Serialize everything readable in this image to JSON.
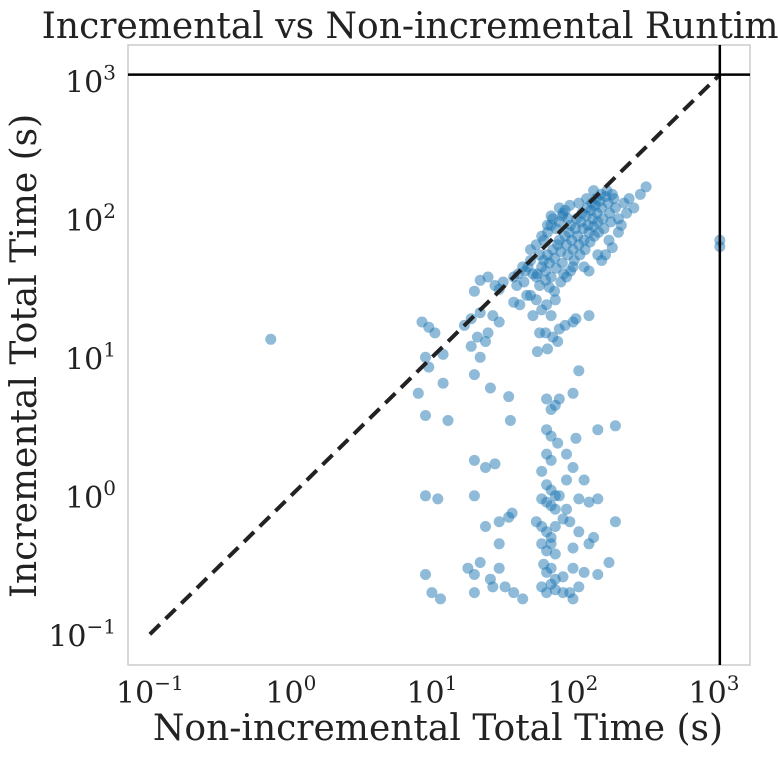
{
  "chart_data": {
    "type": "scatter",
    "title": "Incremental vs Non-incremental Runtimes",
    "xlabel": "Non-incremental Total Time (s)",
    "ylabel": "Incremental Total Time (s)",
    "xscale": "log",
    "yscale": "log",
    "xlim": [
      0.07,
      1800
    ],
    "ylim": [
      0.06,
      1800
    ],
    "grid": false,
    "x_ticks": [
      {
        "value": 0.1,
        "base": "10",
        "exp": "−1"
      },
      {
        "value": 1,
        "base": "10",
        "exp": "0"
      },
      {
        "value": 10,
        "base": "10",
        "exp": "1"
      },
      {
        "value": 100,
        "base": "10",
        "exp": "2"
      },
      {
        "value": 1000,
        "base": "10",
        "exp": "3"
      }
    ],
    "y_ticks": [
      {
        "value": 0.1,
        "base": "10",
        "exp": "−1"
      },
      {
        "value": 1,
        "base": "10",
        "exp": "0"
      },
      {
        "value": 10,
        "base": "10",
        "exp": "1"
      },
      {
        "value": 100,
        "base": "10",
        "exp": "2"
      },
      {
        "value": 1000,
        "base": "10",
        "exp": "3"
      }
    ],
    "reference_lines": {
      "diagonal": {
        "from": 0.1,
        "to": 1100,
        "style": "dashed",
        "color": "#222222"
      },
      "timeout_x": 1100,
      "timeout_y": 1100
    },
    "point_color": "#1f77b4",
    "series": [
      {
        "points": [
          [
            0.72,
            13.5
          ],
          [
            8.5,
            18
          ],
          [
            9.5,
            16.5
          ],
          [
            10.5,
            15
          ],
          [
            9,
            10
          ],
          [
            9.5,
            8.5
          ],
          [
            12,
            10.5
          ],
          [
            8,
            5.5
          ],
          [
            9,
            3.8
          ],
          [
            13,
            3.5
          ],
          [
            12,
            6.5
          ],
          [
            17,
            17
          ],
          [
            19,
            19
          ],
          [
            22,
            21
          ],
          [
            27,
            20
          ],
          [
            30,
            18
          ],
          [
            25,
            15
          ],
          [
            24,
            13
          ],
          [
            21,
            14
          ],
          [
            19,
            12
          ],
          [
            22,
            10
          ],
          [
            20,
            7.5
          ],
          [
            26,
            6
          ],
          [
            35,
            5.2
          ],
          [
            20,
            1.8
          ],
          [
            24,
            1.6
          ],
          [
            28,
            1.7
          ],
          [
            36,
            3.5
          ],
          [
            9,
            1.0
          ],
          [
            11,
            0.95
          ],
          [
            20,
            1.0
          ],
          [
            24,
            0.6
          ],
          [
            30,
            0.45
          ],
          [
            35,
            0.7
          ],
          [
            37,
            0.75
          ],
          [
            30,
            0.65
          ],
          [
            9,
            0.27
          ],
          [
            10,
            0.2
          ],
          [
            11.5,
            0.18
          ],
          [
            18,
            0.3
          ],
          [
            20,
            0.27
          ],
          [
            22,
            0.33
          ],
          [
            26,
            0.25
          ],
          [
            30,
            0.3
          ],
          [
            33,
            0.22
          ],
          [
            38,
            0.2
          ],
          [
            20,
            0.2
          ],
          [
            27,
            0.22
          ],
          [
            44,
            0.18
          ],
          [
            20,
            30
          ],
          [
            22,
            36
          ],
          [
            25,
            38
          ],
          [
            28,
            33
          ],
          [
            30,
            31
          ],
          [
            32,
            35
          ],
          [
            38,
            38
          ],
          [
            41,
            40
          ],
          [
            44,
            45
          ],
          [
            46,
            42
          ],
          [
            38,
            25
          ],
          [
            42,
            24
          ],
          [
            50,
            28
          ],
          [
            55,
            26
          ],
          [
            60,
            22
          ],
          [
            65,
            24
          ],
          [
            70,
            20
          ],
          [
            75,
            26
          ],
          [
            52,
            20
          ],
          [
            58,
            15
          ],
          [
            64,
            15
          ],
          [
            72,
            14
          ],
          [
            80,
            16
          ],
          [
            88,
            17
          ],
          [
            56,
            11
          ],
          [
            66,
            11.5
          ],
          [
            78,
            13
          ],
          [
            100,
            18
          ],
          [
            105,
            19
          ],
          [
            130,
            20
          ],
          [
            65,
            5.0
          ],
          [
            70,
            4.2
          ],
          [
            75,
            4.5
          ],
          [
            80,
            5.0
          ],
          [
            100,
            5.5
          ],
          [
            110,
            8
          ],
          [
            65,
            3.0
          ],
          [
            70,
            2.7
          ],
          [
            78,
            2.4
          ],
          [
            90,
            2.0
          ],
          [
            105,
            2.6
          ],
          [
            150,
            3.0
          ],
          [
            200,
            3.2
          ],
          [
            65,
            2.0
          ],
          [
            70,
            1.8
          ],
          [
            100,
            1.6
          ],
          [
            120,
            1.3
          ],
          [
            60,
            1.5
          ],
          [
            65,
            1.2
          ],
          [
            70,
            1.1
          ],
          [
            75,
            1.0
          ],
          [
            80,
            1.0
          ],
          [
            90,
            1.3
          ],
          [
            60,
            0.95
          ],
          [
            65,
            0.9
          ],
          [
            70,
            0.85
          ],
          [
            75,
            0.8
          ],
          [
            90,
            0.8
          ],
          [
            110,
            0.95
          ],
          [
            130,
            0.9
          ],
          [
            150,
            0.95
          ],
          [
            55,
            0.65
          ],
          [
            60,
            0.6
          ],
          [
            65,
            0.55
          ],
          [
            70,
            0.5
          ],
          [
            75,
            0.6
          ],
          [
            85,
            0.68
          ],
          [
            95,
            0.65
          ],
          [
            110,
            0.55
          ],
          [
            140,
            0.5
          ],
          [
            200,
            0.65
          ],
          [
            60,
            0.45
          ],
          [
            65,
            0.4
          ],
          [
            70,
            0.45
          ],
          [
            75,
            0.38
          ],
          [
            100,
            0.42
          ],
          [
            130,
            0.45
          ],
          [
            62,
            0.32
          ],
          [
            65,
            0.28
          ],
          [
            70,
            0.3
          ],
          [
            75,
            0.25
          ],
          [
            85,
            0.26
          ],
          [
            100,
            0.3
          ],
          [
            120,
            0.28
          ],
          [
            150,
            0.27
          ],
          [
            180,
            0.33
          ],
          [
            60,
            0.22
          ],
          [
            65,
            0.2
          ],
          [
            70,
            0.23
          ],
          [
            75,
            0.21
          ],
          [
            85,
            0.2
          ],
          [
            95,
            0.2
          ],
          [
            100,
            0.18
          ],
          [
            110,
            0.22
          ],
          [
            48,
            45
          ],
          [
            52,
            40
          ],
          [
            55,
            38
          ],
          [
            58,
            33
          ],
          [
            60,
            45
          ],
          [
            62,
            50
          ],
          [
            64,
            42
          ],
          [
            66,
            55
          ],
          [
            68,
            48
          ],
          [
            70,
            38
          ],
          [
            72,
            60
          ],
          [
            74,
            52
          ],
          [
            76,
            44
          ],
          [
            78,
            65
          ],
          [
            80,
            70
          ],
          [
            82,
            58
          ],
          [
            84,
            48
          ],
          [
            86,
            40
          ],
          [
            88,
            75
          ],
          [
            90,
            65
          ],
          [
            92,
            55
          ],
          [
            94,
            80
          ],
          [
            96,
            90
          ],
          [
            98,
            70
          ],
          [
            100,
            60
          ],
          [
            102,
            50
          ],
          [
            104,
            85
          ],
          [
            106,
            100
          ],
          [
            108,
            75
          ],
          [
            110,
            65
          ],
          [
            112,
            55
          ],
          [
            114,
            95
          ],
          [
            116,
            110
          ],
          [
            118,
            85
          ],
          [
            120,
            70
          ],
          [
            122,
            60
          ],
          [
            124,
            105
          ],
          [
            126,
            120
          ],
          [
            128,
            90
          ],
          [
            130,
            80
          ],
          [
            132,
            68
          ],
          [
            134,
            115
          ],
          [
            136,
            130
          ],
          [
            138,
            100
          ],
          [
            140,
            88
          ],
          [
            142,
            75
          ],
          [
            144,
            125
          ],
          [
            146,
            140
          ],
          [
            148,
            110
          ],
          [
            150,
            95
          ],
          [
            152,
            80
          ],
          [
            155,
            135
          ],
          [
            158,
            150
          ],
          [
            160,
            120
          ],
          [
            163,
            100
          ],
          [
            166,
            85
          ],
          [
            170,
            145
          ],
          [
            174,
            160
          ],
          [
            178,
            130
          ],
          [
            182,
            110
          ],
          [
            186,
            95
          ],
          [
            190,
            150
          ],
          [
            195,
            140
          ],
          [
            200,
            120
          ],
          [
            210,
            100
          ],
          [
            220,
            90
          ],
          [
            230,
            130
          ],
          [
            240,
            110
          ],
          [
            250,
            140
          ],
          [
            270,
            120
          ],
          [
            300,
            150
          ],
          [
            330,
            170
          ],
          [
            210,
            80
          ],
          [
            180,
            70
          ],
          [
            190,
            62
          ],
          [
            170,
            55
          ],
          [
            160,
            50
          ],
          [
            50,
            60
          ],
          [
            55,
            65
          ],
          [
            58,
            55
          ],
          [
            62,
            70
          ],
          [
            66,
            80
          ],
          [
            70,
            90
          ],
          [
            72,
            100
          ],
          [
            76,
            85
          ],
          [
            80,
            95
          ],
          [
            84,
            105
          ],
          [
            88,
            115
          ],
          [
            92,
            100
          ],
          [
            45,
            35
          ],
          [
            40,
            33
          ],
          [
            47,
            28
          ],
          [
            50,
            50
          ],
          [
            56,
            40
          ],
          [
            64,
            36
          ],
          [
            68,
            32
          ],
          [
            74,
            30
          ],
          [
            82,
            35
          ],
          [
            90,
            38
          ],
          [
            96,
            42
          ],
          [
            100,
            45
          ],
          [
            60,
            75
          ],
          [
            66,
            90
          ],
          [
            70,
            105
          ],
          [
            80,
            120
          ],
          [
            85,
            110
          ],
          [
            95,
            125
          ],
          [
            110,
            130
          ],
          [
            125,
            140
          ],
          [
            140,
            160
          ],
          [
            120,
            45
          ],
          [
            130,
            42
          ],
          [
            150,
            55
          ],
          [
            1100,
            70
          ],
          [
            1100,
            63
          ]
        ]
      }
    ]
  }
}
